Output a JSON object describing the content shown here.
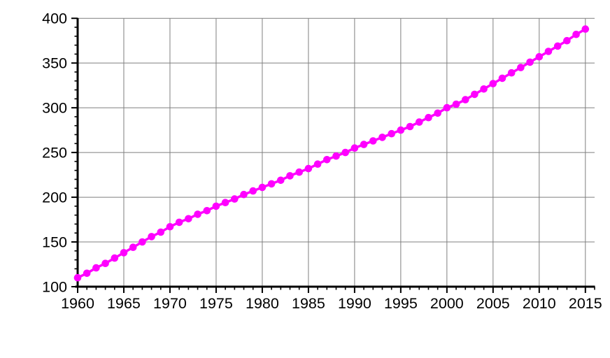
{
  "chart_data": {
    "type": "scatter",
    "title": "",
    "xlabel": "",
    "ylabel": "",
    "legend": "none",
    "grid": true,
    "grid_color": "#7f7f7f",
    "axis_color": "#000000",
    "background_color": "#ffffff",
    "marker": "circle",
    "marker_color": "#ff00ff",
    "line_color": "#ff00ff",
    "xlim": [
      1960,
      2016
    ],
    "ylim": [
      100,
      400
    ],
    "x_minor_step": 1,
    "y_minor_step": 10,
    "x_ticks": {
      "values": [
        1960,
        1965,
        1970,
        1975,
        1980,
        1985,
        1990,
        1995,
        2000,
        2005,
        2010,
        2015
      ],
      "labels": [
        "1960",
        "1965",
        "1970",
        "1975",
        "1980",
        "1985",
        "1990",
        "1995",
        "2000",
        "2005",
        "2010",
        "2015"
      ]
    },
    "y_ticks": {
      "values": [
        100,
        150,
        200,
        250,
        300,
        350,
        400
      ],
      "labels": [
        "100",
        "150",
        "200",
        "250",
        "300",
        "350",
        "400"
      ]
    },
    "x": [
      1960,
      1961,
      1962,
      1963,
      1964,
      1965,
      1966,
      1967,
      1968,
      1969,
      1970,
      1971,
      1972,
      1973,
      1974,
      1975,
      1976,
      1977,
      1978,
      1979,
      1980,
      1981,
      1982,
      1983,
      1984,
      1985,
      1986,
      1987,
      1988,
      1989,
      1990,
      1991,
      1992,
      1993,
      1994,
      1995,
      1996,
      1997,
      1998,
      1999,
      2000,
      2001,
      2002,
      2003,
      2004,
      2005,
      2006,
      2007,
      2008,
      2009,
      2010,
      2011,
      2012,
      2013,
      2014,
      2015
    ],
    "series": [
      {
        "name": "series-1",
        "values": [
          110,
          115,
          121,
          126,
          132,
          138,
          144,
          150,
          156,
          161,
          167,
          172,
          176,
          181,
          185,
          190,
          194,
          198,
          203,
          207,
          211,
          215,
          219,
          224,
          228,
          232,
          237,
          242,
          246,
          250,
          255,
          259,
          263,
          267,
          271,
          275,
          279,
          284,
          289,
          294,
          300,
          304,
          309,
          315,
          321,
          327,
          333,
          339,
          345,
          351,
          357,
          363,
          369,
          375,
          382,
          388
        ]
      }
    ]
  }
}
